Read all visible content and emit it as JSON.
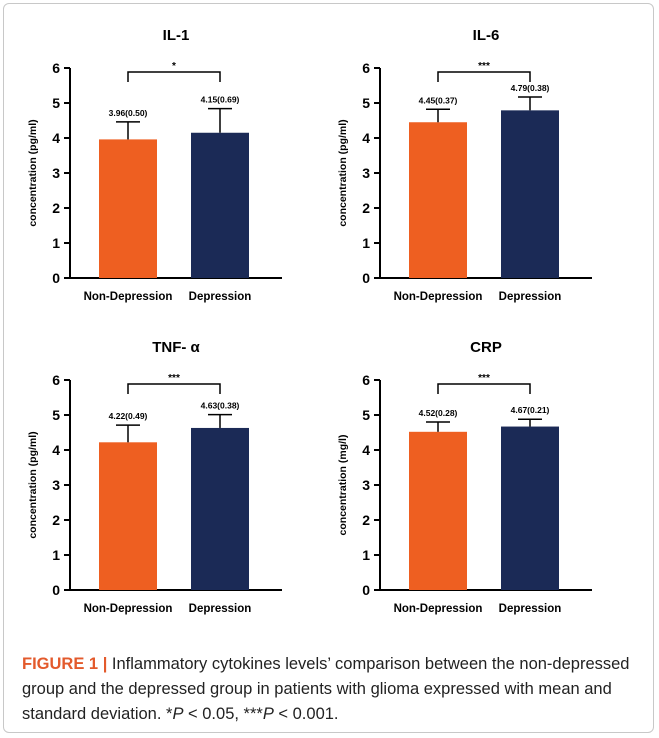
{
  "colors": {
    "non_depression": "#EE5F21",
    "depression": "#1B2A56",
    "axis": "#000000",
    "caption_accent": "#E35A2C"
  },
  "chart_data": [
    {
      "type": "bar",
      "title": "IL-1",
      "ylabel": "concentration (pg/ml)",
      "categories": [
        "Non-Depression",
        "Depression"
      ],
      "values": [
        3.96,
        4.15
      ],
      "errors": [
        0.5,
        0.69
      ],
      "value_labels": [
        "3.96(0.50)",
        "4.15(0.69)"
      ],
      "ylim": [
        0,
        6
      ],
      "yticks": [
        "0",
        "1",
        "2",
        "3",
        "4",
        "5",
        "6"
      ],
      "significance": "*"
    },
    {
      "type": "bar",
      "title": "IL-6",
      "ylabel": "concentration (pg/ml)",
      "categories": [
        "Non-Depression",
        "Depression"
      ],
      "values": [
        4.45,
        4.79
      ],
      "errors": [
        0.37,
        0.38
      ],
      "value_labels": [
        "4.45(0.37)",
        "4.79(0.38)"
      ],
      "ylim": [
        0,
        6
      ],
      "yticks": [
        "0",
        "1",
        "2",
        "3",
        "4",
        "5",
        "6"
      ],
      "significance": "***"
    },
    {
      "type": "bar",
      "title": "TNF- α",
      "ylabel": "concentration (pg/ml)",
      "categories": [
        "Non-Depression",
        "Depression"
      ],
      "values": [
        4.22,
        4.63
      ],
      "errors": [
        0.49,
        0.38
      ],
      "value_labels": [
        "4.22(0.49)",
        "4.63(0.38)"
      ],
      "ylim": [
        0,
        6
      ],
      "yticks": [
        "0",
        "1",
        "2",
        "3",
        "4",
        "5",
        "6"
      ],
      "significance": "***"
    },
    {
      "type": "bar",
      "title": "CRP",
      "ylabel": "concentration (mg/l)",
      "categories": [
        "Non-Depression",
        "Depression"
      ],
      "values": [
        4.52,
        4.67
      ],
      "errors": [
        0.28,
        0.21
      ],
      "value_labels": [
        "4.52(0.28)",
        "4.67(0.21)"
      ],
      "ylim": [
        0,
        6
      ],
      "yticks": [
        "0",
        "1",
        "2",
        "3",
        "4",
        "5",
        "6"
      ],
      "significance": "***"
    }
  ],
  "caption": {
    "label": "FIGURE 1",
    "separator": "|",
    "text_main": " Inflammatory cytokines levels’ comparison between the non-depressed group and the depressed group in patients with glioma expressed with mean and standard deviation. *",
    "p1": "P",
    "text_mid": " < 0.05, ***",
    "p2": "P",
    "text_end": " < 0.001."
  }
}
